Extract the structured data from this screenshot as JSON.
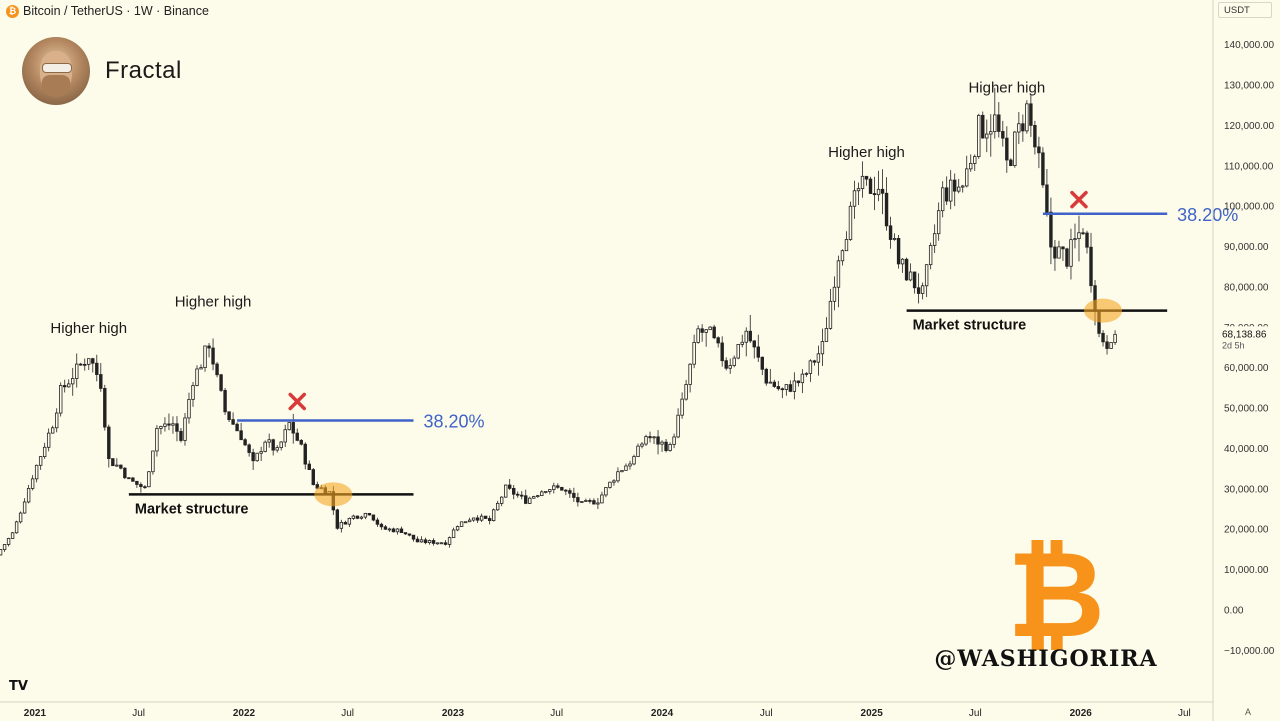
{
  "header": {
    "symbol_icon": "bitcoin-icon",
    "symbol_icon_glyph": "₿",
    "title": "Bitcoin / TetherUS · 1W · Binance",
    "currency": "USDT"
  },
  "author": {
    "name": "Fractal",
    "avatar_icon": "avatar-portrait"
  },
  "watermark": {
    "glyph": "₿",
    "text": "@WASHIGORIRA",
    "color": "#f7931a"
  },
  "footer": {
    "logo_text": "TV",
    "tz_label": "A"
  },
  "colors": {
    "background": "#fdfbea",
    "candle": "#222222",
    "fib_line": "#3f63c8",
    "structure_line": "#111111",
    "highlight": "#f5a623",
    "cross": "#d83a3a"
  },
  "chart_data": {
    "type": "candlestick",
    "interval": "1W",
    "x_range": [
      "2020-11-01",
      "2026-08-20"
    ],
    "ylim": [
      -15000,
      145000
    ],
    "y_ticks": [
      140000,
      130000,
      120000,
      110000,
      100000,
      90000,
      80000,
      70000,
      60000,
      50000,
      40000,
      30000,
      20000,
      10000,
      0,
      -10000
    ],
    "y_tick_labels": [
      "140,000.00",
      "130,000.00",
      "120,000.00",
      "110,000.00",
      "100,000.00",
      "90,000.00",
      "80,000.00",
      "70,000.00",
      "60,000.00",
      "50,000.00",
      "40,000.00",
      "30,000.00",
      "20,000.00",
      "10,000.00",
      "0.00",
      "−10,000.00"
    ],
    "x_ticks": [
      {
        "date": "2021-01-01",
        "label": "2021",
        "bold": true
      },
      {
        "date": "2021-07-01",
        "label": "Jul",
        "bold": false
      },
      {
        "date": "2022-01-01",
        "label": "2022",
        "bold": true
      },
      {
        "date": "2022-07-01",
        "label": "Jul",
        "bold": false
      },
      {
        "date": "2023-01-01",
        "label": "2023",
        "bold": true
      },
      {
        "date": "2023-07-01",
        "label": "Jul",
        "bold": false
      },
      {
        "date": "2024-01-01",
        "label": "2024",
        "bold": true
      },
      {
        "date": "2024-07-01",
        "label": "Jul",
        "bold": false
      },
      {
        "date": "2025-01-01",
        "label": "2025",
        "bold": true
      },
      {
        "date": "2025-07-01",
        "label": "Jul",
        "bold": false
      },
      {
        "date": "2026-01-01",
        "label": "2026",
        "bold": true
      },
      {
        "date": "2026-07-01",
        "label": "Jul",
        "bold": false
      }
    ],
    "price_path": [
      [
        "2020-11-02",
        13500
      ],
      [
        "2020-12-01",
        19000
      ],
      [
        "2021-01-04",
        33000
      ],
      [
        "2021-02-08",
        46000
      ],
      [
        "2021-02-22",
        54000
      ],
      [
        "2021-03-15",
        58000
      ],
      [
        "2021-04-12",
        63000
      ],
      [
        "2021-05-03",
        56000
      ],
      [
        "2021-05-17",
        37000
      ],
      [
        "2021-06-07",
        35000
      ],
      [
        "2021-06-21",
        32000
      ],
      [
        "2021-07-19",
        30000
      ],
      [
        "2021-08-09",
        45000
      ],
      [
        "2021-09-06",
        46000
      ],
      [
        "2021-09-20",
        42000
      ],
      [
        "2021-10-11",
        57000
      ],
      [
        "2021-10-25",
        61000
      ],
      [
        "2021-11-08",
        66000
      ],
      [
        "2021-11-22",
        57000
      ],
      [
        "2021-12-06",
        49000
      ],
      [
        "2022-01-03",
        43000
      ],
      [
        "2022-01-24",
        36000
      ],
      [
        "2022-02-14",
        42000
      ],
      [
        "2022-03-07",
        39000
      ],
      [
        "2022-03-28",
        46000
      ],
      [
        "2022-04-18",
        40000
      ],
      [
        "2022-05-09",
        31000
      ],
      [
        "2022-06-06",
        29000
      ],
      [
        "2022-06-20",
        20500
      ],
      [
        "2022-07-18",
        23000
      ],
      [
        "2022-08-15",
        24000
      ],
      [
        "2022-09-05",
        20000
      ],
      [
        "2022-10-10",
        19500
      ],
      [
        "2022-11-07",
        16800
      ],
      [
        "2022-12-26",
        16600
      ],
      [
        "2023-01-16",
        21000
      ],
      [
        "2023-02-13",
        23000
      ],
      [
        "2023-03-13",
        22000
      ],
      [
        "2023-04-10",
        30000
      ],
      [
        "2023-05-15",
        27000
      ],
      [
        "2023-06-19",
        30000
      ],
      [
        "2023-07-17",
        30000
      ],
      [
        "2023-08-21",
        26000
      ],
      [
        "2023-09-18",
        27000
      ],
      [
        "2023-10-23",
        34000
      ],
      [
        "2023-11-20",
        37500
      ],
      [
        "2023-12-11",
        43000
      ],
      [
        "2024-01-22",
        40000
      ],
      [
        "2024-02-12",
        51000
      ],
      [
        "2024-03-11",
        69000
      ],
      [
        "2024-04-01",
        68000
      ],
      [
        "2024-05-01",
        60000
      ],
      [
        "2024-06-03",
        69000
      ],
      [
        "2024-07-08",
        57000
      ],
      [
        "2024-08-05",
        54000
      ],
      [
        "2024-09-09",
        57000
      ],
      [
        "2024-10-14",
        65000
      ],
      [
        "2024-11-11",
        88000
      ],
      [
        "2024-12-16",
        104000
      ],
      [
        "2025-01-20",
        105000
      ],
      [
        "2025-02-24",
        86000
      ],
      [
        "2025-04-07",
        78000
      ],
      [
        "2025-05-12",
        103000
      ],
      [
        "2025-06-16",
        105000
      ],
      [
        "2025-07-14",
        119000
      ],
      [
        "2025-08-11",
        121000
      ],
      [
        "2025-09-01",
        110000
      ],
      [
        "2025-10-06",
        124000
      ],
      [
        "2025-10-27",
        110000
      ],
      [
        "2025-11-17",
        90000
      ],
      [
        "2025-12-15",
        87000
      ],
      [
        "2026-01-12",
        95000
      ],
      [
        "2026-02-02",
        76000
      ],
      [
        "2026-02-09",
        68000
      ],
      [
        "2026-02-23",
        66000
      ],
      [
        "2026-03-02",
        68138.86
      ]
    ],
    "last_price": {
      "value": 68138.86,
      "label": "68,138.86",
      "countdown": "2d 5h"
    },
    "annotations": [
      {
        "id": "hh-2021-a",
        "text": "Higher high",
        "date": "2021-04-05",
        "y": 68500
      },
      {
        "id": "hh-2021-b",
        "text": "Higher high",
        "date": "2021-11-08",
        "y": 75000
      },
      {
        "id": "hh-2024",
        "text": "Higher high",
        "date": "2024-12-23",
        "y": 112000
      },
      {
        "id": "hh-2025",
        "text": "Higher high",
        "date": "2025-08-25",
        "y": 128000
      }
    ],
    "fib_levels": [
      {
        "label": "38.20%",
        "y": 46800,
        "from": "2021-12-20",
        "to": "2022-10-24"
      },
      {
        "label": "38.20%",
        "y": 98000,
        "from": "2025-10-27",
        "to": "2026-06-01"
      }
    ],
    "market_structure": [
      {
        "label": "Market structure",
        "y": 28500,
        "from": "2021-06-14",
        "to": "2022-10-24"
      },
      {
        "label": "Market structure",
        "y": 74000,
        "from": "2025-03-03",
        "to": "2026-06-01"
      }
    ],
    "crosses": [
      {
        "date": "2022-04-04",
        "y": 51500
      },
      {
        "date": "2025-12-29",
        "y": 101500
      }
    ],
    "highlights": [
      {
        "date": "2022-06-06",
        "y": 28500
      },
      {
        "date": "2026-02-09",
        "y": 74000
      }
    ]
  }
}
